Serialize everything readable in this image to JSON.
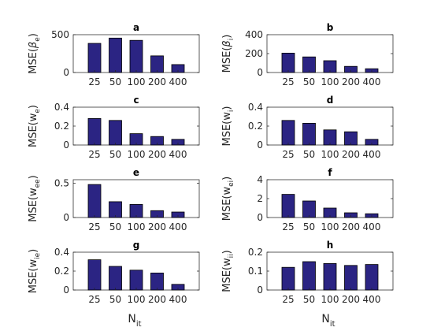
{
  "chart_data": [
    {
      "type": "bar",
      "title": "a",
      "ylabel": {
        "main": "MSE(",
        "greek": "β",
        "sub": "e",
        "close": ")"
      },
      "categories": [
        "25",
        "50",
        "100",
        "200",
        "400"
      ],
      "values": [
        385,
        455,
        425,
        220,
        105
      ],
      "ylim": [
        0,
        500
      ],
      "yticks": [
        0,
        500
      ],
      "xlabel": ""
    },
    {
      "type": "bar",
      "title": "b",
      "ylabel": {
        "main": "MSE(",
        "greek": "β",
        "sub": "i",
        "close": ")"
      },
      "categories": [
        "25",
        "50",
        "100",
        "200",
        "400"
      ],
      "values": [
        205,
        165,
        125,
        65,
        40
      ],
      "ylim": [
        0,
        400
      ],
      "yticks": [
        0,
        200,
        400
      ],
      "xlabel": ""
    },
    {
      "type": "bar",
      "title": "c",
      "ylabel": {
        "main": "MSE(w",
        "greek": "",
        "sub": "e",
        "close": ")"
      },
      "categories": [
        "25",
        "50",
        "100",
        "200",
        "400"
      ],
      "values": [
        0.28,
        0.26,
        0.12,
        0.09,
        0.06
      ],
      "ylim": [
        0,
        0.4
      ],
      "yticks": [
        0,
        0.2,
        0.4
      ],
      "xlabel": ""
    },
    {
      "type": "bar",
      "title": "d",
      "ylabel": {
        "main": "MSE(w",
        "greek": "",
        "sub": "i",
        "close": ")"
      },
      "categories": [
        "25",
        "50",
        "100",
        "200",
        "400"
      ],
      "values": [
        0.26,
        0.23,
        0.16,
        0.14,
        0.06
      ],
      "ylim": [
        0,
        0.4
      ],
      "yticks": [
        0,
        0.2,
        0.4
      ],
      "xlabel": ""
    },
    {
      "type": "bar",
      "title": "e",
      "ylabel": {
        "main": "MSE(w",
        "greek": "",
        "sub": "ee",
        "close": ")"
      },
      "categories": [
        "25",
        "50",
        "100",
        "200",
        "400"
      ],
      "values": [
        0.48,
        0.23,
        0.19,
        0.1,
        0.08
      ],
      "ylim": [
        0,
        0.55
      ],
      "yticks": [
        0,
        0.5
      ],
      "xlabel": ""
    },
    {
      "type": "bar",
      "title": "f",
      "ylabel": {
        "main": "MSE(w",
        "greek": "",
        "sub": "ei",
        "close": ")"
      },
      "categories": [
        "25",
        "50",
        "100",
        "200",
        "400"
      ],
      "values": [
        2.45,
        1.75,
        1.0,
        0.5,
        0.4
      ],
      "ylim": [
        0,
        4
      ],
      "yticks": [
        0,
        2,
        4
      ],
      "xlabel": ""
    },
    {
      "type": "bar",
      "title": "g",
      "ylabel": {
        "main": "MSE(w",
        "greek": "",
        "sub": "ie",
        "close": ")"
      },
      "categories": [
        "25",
        "50",
        "100",
        "200",
        "400"
      ],
      "values": [
        0.32,
        0.25,
        0.21,
        0.18,
        0.06
      ],
      "ylim": [
        0,
        0.4
      ],
      "yticks": [
        0,
        0.2,
        0.4
      ],
      "xlabel": {
        "main": "N",
        "sub": "it"
      }
    },
    {
      "type": "bar",
      "title": "h",
      "ylabel": {
        "main": "MSE(w",
        "greek": "",
        "sub": "ii",
        "close": ")"
      },
      "categories": [
        "25",
        "50",
        "100",
        "200",
        "400"
      ],
      "values": [
        0.12,
        0.15,
        0.14,
        0.13,
        0.135
      ],
      "ylim": [
        0,
        0.2
      ],
      "yticks": [
        0,
        0.1,
        0.2
      ],
      "xlabel": {
        "main": "N",
        "sub": "it"
      }
    }
  ],
  "colors": {
    "bar_fill": "#2b2483",
    "axis": "#262626"
  }
}
